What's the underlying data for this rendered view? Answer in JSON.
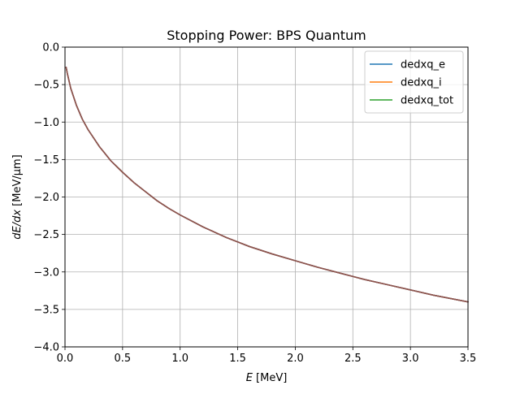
{
  "chart_data": {
    "type": "line",
    "title": "Stopping Power: BPS Quantum",
    "xlabel_italic": "E",
    "xlabel_rest": " [MeV]",
    "ylabel_italic": "dE/dx",
    "ylabel_rest": " [MeV/μm]",
    "xlim": [
      0.0,
      3.5
    ],
    "ylim": [
      -4.0,
      0.0
    ],
    "xticks": [
      0.0,
      0.5,
      1.0,
      1.5,
      2.0,
      2.5,
      3.0,
      3.5
    ],
    "yticks": [
      0.0,
      -0.5,
      -1.0,
      -1.5,
      -2.0,
      -2.5,
      -3.0,
      -3.5,
      -4.0
    ],
    "xtick_labels": [
      "0.0",
      "0.5",
      "1.0",
      "1.5",
      "2.0",
      "2.5",
      "3.0",
      "3.5"
    ],
    "ytick_labels": [
      "0.0",
      "−0.5",
      "−1.0",
      "−1.5",
      "−2.0",
      "−2.5",
      "−3.0",
      "−3.5",
      "−4.0"
    ],
    "grid": true,
    "legend_position": "top-right",
    "series": [
      {
        "name": "dedxq_e",
        "color": "#1f77b4",
        "x": [
          0.01,
          0.02,
          0.05,
          0.1,
          0.15,
          0.2,
          0.3,
          0.4,
          0.5,
          0.6,
          0.7,
          0.8,
          0.9,
          1.0,
          1.2,
          1.4,
          1.5,
          1.6,
          1.8,
          2.0,
          2.2,
          2.4,
          2.5,
          2.6,
          2.8,
          3.0,
          3.2,
          3.4,
          3.5
        ],
        "y": [
          -0.27,
          -0.35,
          -0.55,
          -0.78,
          -0.96,
          -1.1,
          -1.33,
          -1.52,
          -1.67,
          -1.81,
          -1.93,
          -2.05,
          -2.15,
          -2.24,
          -2.4,
          -2.54,
          -2.6,
          -2.66,
          -2.76,
          -2.85,
          -2.94,
          -3.02,
          -3.06,
          -3.1,
          -3.17,
          -3.24,
          -3.31,
          -3.37,
          -3.4
        ]
      },
      {
        "name": "dedxq_i",
        "color": "#ff7f0e",
        "x": [
          0.01,
          0.02,
          0.05,
          0.1,
          0.15,
          0.2,
          0.3,
          0.4,
          0.5,
          0.6,
          0.7,
          0.8,
          0.9,
          1.0,
          1.2,
          1.4,
          1.5,
          1.6,
          1.8,
          2.0,
          2.2,
          2.4,
          2.5,
          2.6,
          2.8,
          3.0,
          3.2,
          3.4,
          3.5
        ],
        "y": [
          -0.27,
          -0.35,
          -0.55,
          -0.78,
          -0.96,
          -1.1,
          -1.33,
          -1.52,
          -1.67,
          -1.81,
          -1.93,
          -2.05,
          -2.15,
          -2.24,
          -2.4,
          -2.54,
          -2.6,
          -2.66,
          -2.76,
          -2.85,
          -2.94,
          -3.02,
          -3.06,
          -3.1,
          -3.17,
          -3.24,
          -3.31,
          -3.37,
          -3.4
        ]
      },
      {
        "name": "dedxq_tot",
        "color": "#2ca02c",
        "x": [
          0.01,
          0.02,
          0.05,
          0.1,
          0.15,
          0.2,
          0.3,
          0.4,
          0.5,
          0.6,
          0.7,
          0.8,
          0.9,
          1.0,
          1.2,
          1.4,
          1.5,
          1.6,
          1.8,
          2.0,
          2.2,
          2.4,
          2.5,
          2.6,
          2.8,
          3.0,
          3.2,
          3.4,
          3.5
        ],
        "y": [
          -0.27,
          -0.35,
          -0.55,
          -0.78,
          -0.96,
          -1.1,
          -1.33,
          -1.52,
          -1.67,
          -1.81,
          -1.93,
          -2.05,
          -2.15,
          -2.24,
          -2.4,
          -2.54,
          -2.6,
          -2.66,
          -2.76,
          -2.85,
          -2.94,
          -3.02,
          -3.06,
          -3.1,
          -3.17,
          -3.24,
          -3.31,
          -3.37,
          -3.4
        ]
      },
      {
        "color": "#d62728",
        "x": [
          0.01,
          0.02,
          0.05,
          0.1,
          0.15,
          0.2,
          0.3,
          0.4,
          0.5,
          0.6,
          0.7,
          0.8,
          0.9,
          1.0,
          1.2,
          1.4,
          1.5,
          1.6,
          1.8,
          2.0,
          2.2,
          2.4,
          2.5,
          2.6,
          2.8,
          3.0,
          3.2,
          3.4,
          3.5
        ],
        "y": [
          -0.27,
          -0.35,
          -0.55,
          -0.78,
          -0.96,
          -1.1,
          -1.33,
          -1.52,
          -1.67,
          -1.81,
          -1.93,
          -2.05,
          -2.15,
          -2.24,
          -2.4,
          -2.54,
          -2.6,
          -2.66,
          -2.76,
          -2.85,
          -2.94,
          -3.02,
          -3.06,
          -3.1,
          -3.17,
          -3.24,
          -3.31,
          -3.37,
          -3.4
        ]
      },
      {
        "color": "#9467bd",
        "x": [
          0.01,
          0.02,
          0.05,
          0.1,
          0.15,
          0.2,
          0.3,
          0.4,
          0.5,
          0.6,
          0.7,
          0.8,
          0.9,
          1.0,
          1.2,
          1.4,
          1.5,
          1.6,
          1.8,
          2.0,
          2.2,
          2.4,
          2.5,
          2.6,
          2.8,
          3.0,
          3.2,
          3.4,
          3.5
        ],
        "y": [
          -0.27,
          -0.35,
          -0.55,
          -0.78,
          -0.96,
          -1.1,
          -1.33,
          -1.52,
          -1.67,
          -1.81,
          -1.93,
          -2.05,
          -2.15,
          -2.24,
          -2.4,
          -2.54,
          -2.6,
          -2.66,
          -2.76,
          -2.85,
          -2.94,
          -3.02,
          -3.06,
          -3.1,
          -3.17,
          -3.24,
          -3.31,
          -3.37,
          -3.4
        ]
      },
      {
        "color": "#8c564b",
        "x": [
          0.01,
          0.02,
          0.05,
          0.1,
          0.15,
          0.2,
          0.3,
          0.4,
          0.5,
          0.6,
          0.7,
          0.8,
          0.9,
          1.0,
          1.2,
          1.4,
          1.5,
          1.6,
          1.8,
          2.0,
          2.2,
          2.4,
          2.5,
          2.6,
          2.8,
          3.0,
          3.2,
          3.4,
          3.5
        ],
        "y": [
          -0.27,
          -0.35,
          -0.55,
          -0.78,
          -0.96,
          -1.1,
          -1.33,
          -1.52,
          -1.67,
          -1.81,
          -1.93,
          -2.05,
          -2.15,
          -2.24,
          -2.4,
          -2.54,
          -2.6,
          -2.66,
          -2.76,
          -2.85,
          -2.94,
          -3.02,
          -3.06,
          -3.1,
          -3.17,
          -3.24,
          -3.31,
          -3.37,
          -3.4
        ]
      }
    ]
  }
}
